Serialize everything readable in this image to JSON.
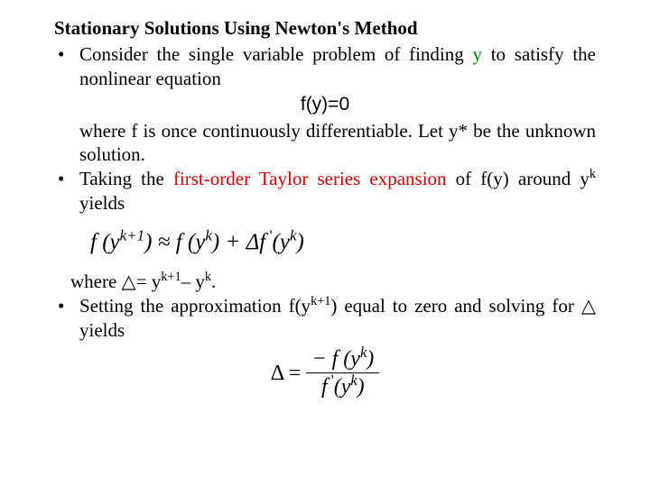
{
  "title": "Stationary Solutions Using Newton's Method",
  "b1a": "Consider the single variable problem of finding ",
  "b1_y": "y",
  "b1b": " to satisfy the nonlinear equation",
  "eq1": "f(y)=0",
  "b1c": " where f is once continuously differentiable. Let y* be the unknown solution.",
  "b2a": "Taking the ",
  "b2_red": "first-order Taylor series expansion",
  "b2b": " of f(y) around y",
  "b2_sup": "k",
  "b2c": " yields",
  "taylor_text": "f (y",
  "taylor_k1": "k+1",
  "taylor_mid": ") ≈ f (y",
  "taylor_k": "k",
  "taylor_mid2": ") + Δf",
  "taylor_prime": " '",
  "taylor_end": "(y",
  "taylor_k2": "k",
  "taylor_close": ")",
  "delta_line_a": "where △= y",
  "delta_sup1": "k+1",
  "delta_line_b": "– y",
  "delta_sup2": "k",
  "delta_line_c": ".",
  "b3a": "Setting the approximation f(y",
  "b3_sup": "k+1",
  "b3b": ") equal to zero and solving for △ yields",
  "frac_lhs": "Δ =",
  "frac_num_a": "− f (y",
  "frac_num_sup": "k",
  "frac_num_b": ")",
  "frac_den_a": "f",
  "frac_den_prime": " '",
  "frac_den_b": "(y",
  "frac_den_sup": "k",
  "frac_den_c": ")",
  "colors": {
    "green": "#008000",
    "red": "#cc0000",
    "text": "#000000",
    "bg": "#ffffff"
  }
}
